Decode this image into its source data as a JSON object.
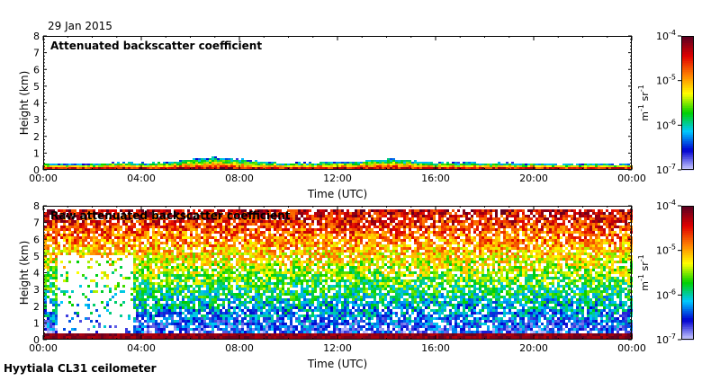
{
  "date_label": "29 Jan 2015",
  "footer_label": "Hyytiala CL31 ceilometer",
  "colorbar": {
    "unit_main": "m",
    "unit_sup1": "-1",
    "unit_mid": " sr",
    "unit_sup2": "-1",
    "ticks": [
      {
        "base": "10",
        "exp": "-4",
        "value": 0.0001
      },
      {
        "base": "10",
        "exp": "-5",
        "value": 1e-05
      },
      {
        "base": "10",
        "exp": "-6",
        "value": 1e-06
      },
      {
        "base": "10",
        "exp": "-7",
        "value": 1e-07
      }
    ],
    "colors": [
      "#c8c8ff",
      "#0000d0",
      "#00c8ff",
      "#00d000",
      "#ffff00",
      "#ff8000",
      "#e00000",
      "#600020"
    ]
  },
  "chart_data": [
    {
      "type": "heatmap",
      "title": "Attenuated backscatter coefficient",
      "xlabel": "Time (UTC)",
      "ylabel": "Height (km)",
      "x_ticks": [
        "00:00",
        "04:00",
        "08:00",
        "12:00",
        "16:00",
        "20:00",
        "00:00"
      ],
      "y_ticks": [
        "0",
        "1",
        "2",
        "3",
        "4",
        "5",
        "6",
        "7",
        "8"
      ],
      "xlim_hours": [
        0,
        24
      ],
      "ylim_km": [
        0,
        8
      ],
      "color_scale": "log",
      "color_range": [
        1e-07,
        0.0001
      ],
      "boundary_layer_top_km": [
        0.3,
        0.3,
        0.3,
        0.4,
        0.35,
        0.4,
        0.6,
        0.7,
        0.6,
        0.4,
        0.35,
        0.4,
        0.4,
        0.45,
        0.6,
        0.5,
        0.4,
        0.4,
        0.35,
        0.35,
        0.3,
        0.3,
        0.3,
        0.3,
        0.3
      ]
    },
    {
      "type": "heatmap",
      "title": "Raw attenuated backscatter coefficient",
      "xlabel": "Time (UTC)",
      "ylabel": "Height (km)",
      "x_ticks": [
        "00:00",
        "04:00",
        "08:00",
        "12:00",
        "16:00",
        "20:00",
        "00:00"
      ],
      "y_ticks": [
        "0",
        "1",
        "2",
        "3",
        "4",
        "5",
        "6",
        "7",
        "8"
      ],
      "xlim_hours": [
        0,
        24
      ],
      "ylim_km": [
        0,
        8
      ],
      "color_scale": "log",
      "color_range": [
        1e-07,
        0.0001
      ],
      "noise_top_km": 7.7
    }
  ]
}
